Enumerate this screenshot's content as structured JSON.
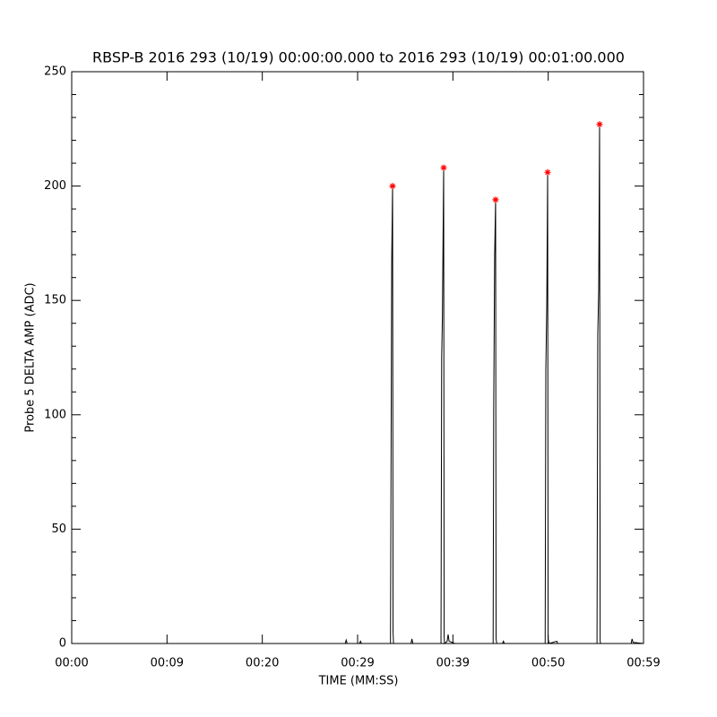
{
  "chart_data": {
    "type": "line",
    "title": "RBSP-B 2016 293 (10/19) 00:00:00.000 to 2016 293 (10/19) 00:01:00.000",
    "x_label": "TIME (MM:SS)",
    "y_label": "Probe 5 DELTA AMP (ADC)",
    "xlim": [
      0,
      60
    ],
    "ylim": [
      0,
      250
    ],
    "xticks": [
      {
        "value": 0,
        "label": "00:00"
      },
      {
        "value": 10,
        "label": "00:09"
      },
      {
        "value": 20,
        "label": "00:20"
      },
      {
        "value": 30,
        "label": "00:29"
      },
      {
        "value": 40,
        "label": "00:39"
      },
      {
        "value": 50,
        "label": "00:50"
      },
      {
        "value": 60,
        "label": "00:59"
      }
    ],
    "yticks": [
      0,
      50,
      100,
      150,
      200,
      250
    ],
    "y_minor_ticks": [
      10,
      20,
      30,
      40,
      60,
      70,
      80,
      90,
      110,
      120,
      130,
      140,
      160,
      170,
      180,
      190,
      210,
      220,
      230,
      240
    ],
    "series": [
      {
        "color": "#000000",
        "x": [
          0,
          28.7,
          28.8,
          28.9,
          30.2,
          30.3,
          30.4,
          33.45,
          33.5,
          33.58,
          33.67,
          33.72,
          33.77,
          35.6,
          35.7,
          35.8,
          38.75,
          38.82,
          38.9,
          39.03,
          39.08,
          39.12,
          39.4,
          39.5,
          39.6,
          40.2,
          44.22,
          44.28,
          44.38,
          44.48,
          44.53,
          44.6,
          45.2,
          45.3,
          45.4,
          49.68,
          49.75,
          49.85,
          49.94,
          49.99,
          50.1,
          50.9,
          51.0,
          55.12,
          55.2,
          55.3,
          55.39,
          55.45,
          55.5,
          58.7,
          58.8,
          58.9,
          60
        ],
        "values": [
          0,
          0,
          1.5,
          0,
          0,
          1,
          0,
          0,
          68,
          168,
          200,
          5,
          0,
          0,
          2,
          0,
          0,
          125,
          143,
          208,
          3,
          0,
          1,
          4,
          1,
          0,
          0,
          102,
          170,
          194,
          2,
          0,
          0,
          1,
          0,
          0,
          120,
          148,
          206,
          2,
          0,
          1,
          0,
          0,
          135,
          155,
          227,
          1,
          0,
          0,
          2,
          0.5,
          0
        ]
      },
      {
        "color": "#ff0000",
        "marker": "asterisk",
        "x": [
          33.67,
          39.03,
          44.48,
          49.94,
          55.39
        ],
        "values": [
          200,
          208,
          194,
          206,
          227
        ]
      }
    ]
  }
}
